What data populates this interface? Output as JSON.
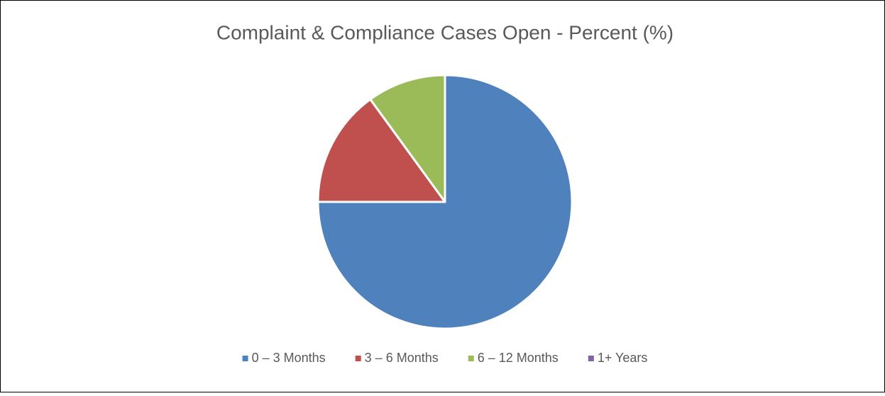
{
  "chart_data": {
    "type": "pie",
    "title": "Complaint & Compliance Cases Open - Percent (%)",
    "categories": [
      "0 – 3 Months",
      "3 – 6 Months",
      "6 – 12 Months",
      "1+ Years"
    ],
    "values": [
      75,
      15,
      10,
      0
    ],
    "colors": [
      "#4f81bd",
      "#c0504d",
      "#9bbb59",
      "#8064a2"
    ],
    "legend": "bottom"
  }
}
